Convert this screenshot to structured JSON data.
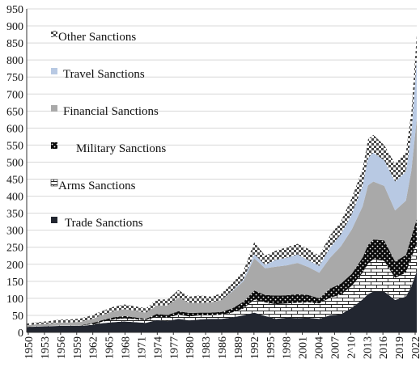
{
  "chart_data": {
    "type": "area",
    "stacked": true,
    "title": "",
    "xlabel": "",
    "ylabel": "",
    "ylim": [
      0,
      950
    ],
    "yticks": [
      0,
      50,
      100,
      150,
      200,
      250,
      300,
      350,
      400,
      450,
      500,
      550,
      600,
      650,
      700,
      750,
      800,
      850,
      900,
      950
    ],
    "xticks": [
      "1950",
      "1953",
      "1956",
      "1959",
      "1962",
      "1965",
      "1968",
      "1971",
      "1974",
      "1977",
      "1980",
      "1983",
      "1986",
      "1989",
      "1992",
      "1995",
      "1998",
      "2001",
      "2004",
      "2007",
      "2^10",
      "2013",
      "2016",
      "2019",
      "2022"
    ],
    "grid": "horizontal",
    "legend_position": "upper-left",
    "x": [
      1950,
      1952,
      1954,
      1956,
      1958,
      1960,
      1962,
      1964,
      1966,
      1968,
      1970,
      1972,
      1974,
      1976,
      1978,
      1980,
      1982,
      1984,
      1986,
      1988,
      1990,
      1992,
      1994,
      1996,
      1998,
      2000,
      2002,
      2004,
      2006,
      2008,
      2010,
      2012,
      2013,
      2014,
      2016,
      2018,
      2020,
      2021,
      2022
    ],
    "series": [
      {
        "name": "Trade Sanctions",
        "color": "#222630",
        "pattern": "solid",
        "values": [
          15,
          17,
          18,
          19,
          19,
          19,
          22,
          27,
          30,
          32,
          30,
          28,
          36,
          33,
          40,
          35,
          38,
          40,
          40,
          44,
          50,
          58,
          48,
          40,
          43,
          42,
          43,
          40,
          50,
          53,
          72,
          97,
          112,
          120,
          120,
          95,
          105,
          135,
          180
        ]
      },
      {
        "name": "Arms Sanctions",
        "color": "#ffffff",
        "pattern": "brick",
        "values": [
          1,
          1,
          1,
          1,
          1,
          1,
          2,
          4,
          8,
          9,
          9,
          8,
          10,
          10,
          12,
          12,
          12,
          10,
          12,
          15,
          20,
          38,
          40,
          43,
          42,
          45,
          45,
          45,
          52,
          58,
          65,
          78,
          90,
          95,
          90,
          65,
          70,
          85,
          80
        ]
      },
      {
        "name": "Military Sanctions",
        "color": "#111111",
        "pattern": "dots",
        "values": [
          0,
          0,
          0,
          0,
          0,
          1,
          3,
          5,
          6,
          7,
          5,
          4,
          8,
          8,
          10,
          10,
          8,
          8,
          8,
          12,
          20,
          27,
          22,
          25,
          24,
          25,
          22,
          15,
          27,
          32,
          35,
          45,
          55,
          58,
          60,
          48,
          52,
          60,
          73
        ]
      },
      {
        "name": "Financial Sanctions",
        "color": "#a9a9a9",
        "pattern": "solid",
        "values": [
          5,
          6,
          7,
          9,
          9,
          10,
          12,
          15,
          18,
          20,
          20,
          18,
          25,
          28,
          40,
          30,
          28,
          30,
          35,
          50,
          60,
          95,
          78,
          85,
          88,
          92,
          82,
          75,
          90,
          110,
          130,
          150,
          175,
          170,
          160,
          150,
          160,
          195,
          295
        ]
      },
      {
        "name": "Travel Sanctions",
        "color": "#b8c9e3",
        "pattern": "solid",
        "values": [
          0,
          0,
          0,
          0,
          0,
          0,
          0,
          0,
          0,
          0,
          0,
          0,
          0,
          0,
          0,
          0,
          0,
          0,
          0,
          2,
          5,
          12,
          10,
          20,
          22,
          25,
          20,
          20,
          30,
          35,
          45,
          60,
          80,
          85,
          75,
          85,
          85,
          105,
          175
        ]
      },
      {
        "name": "Other Sanctions",
        "color": "#c8c8c8",
        "pattern": "checker",
        "values": [
          5,
          6,
          7,
          8,
          9,
          10,
          11,
          12,
          13,
          14,
          13,
          12,
          18,
          18,
          22,
          18,
          22,
          17,
          20,
          22,
          25,
          35,
          27,
          27,
          31,
          31,
          33,
          30,
          36,
          38,
          48,
          50,
          55,
          52,
          45,
          52,
          58,
          65,
          72
        ]
      }
    ]
  }
}
